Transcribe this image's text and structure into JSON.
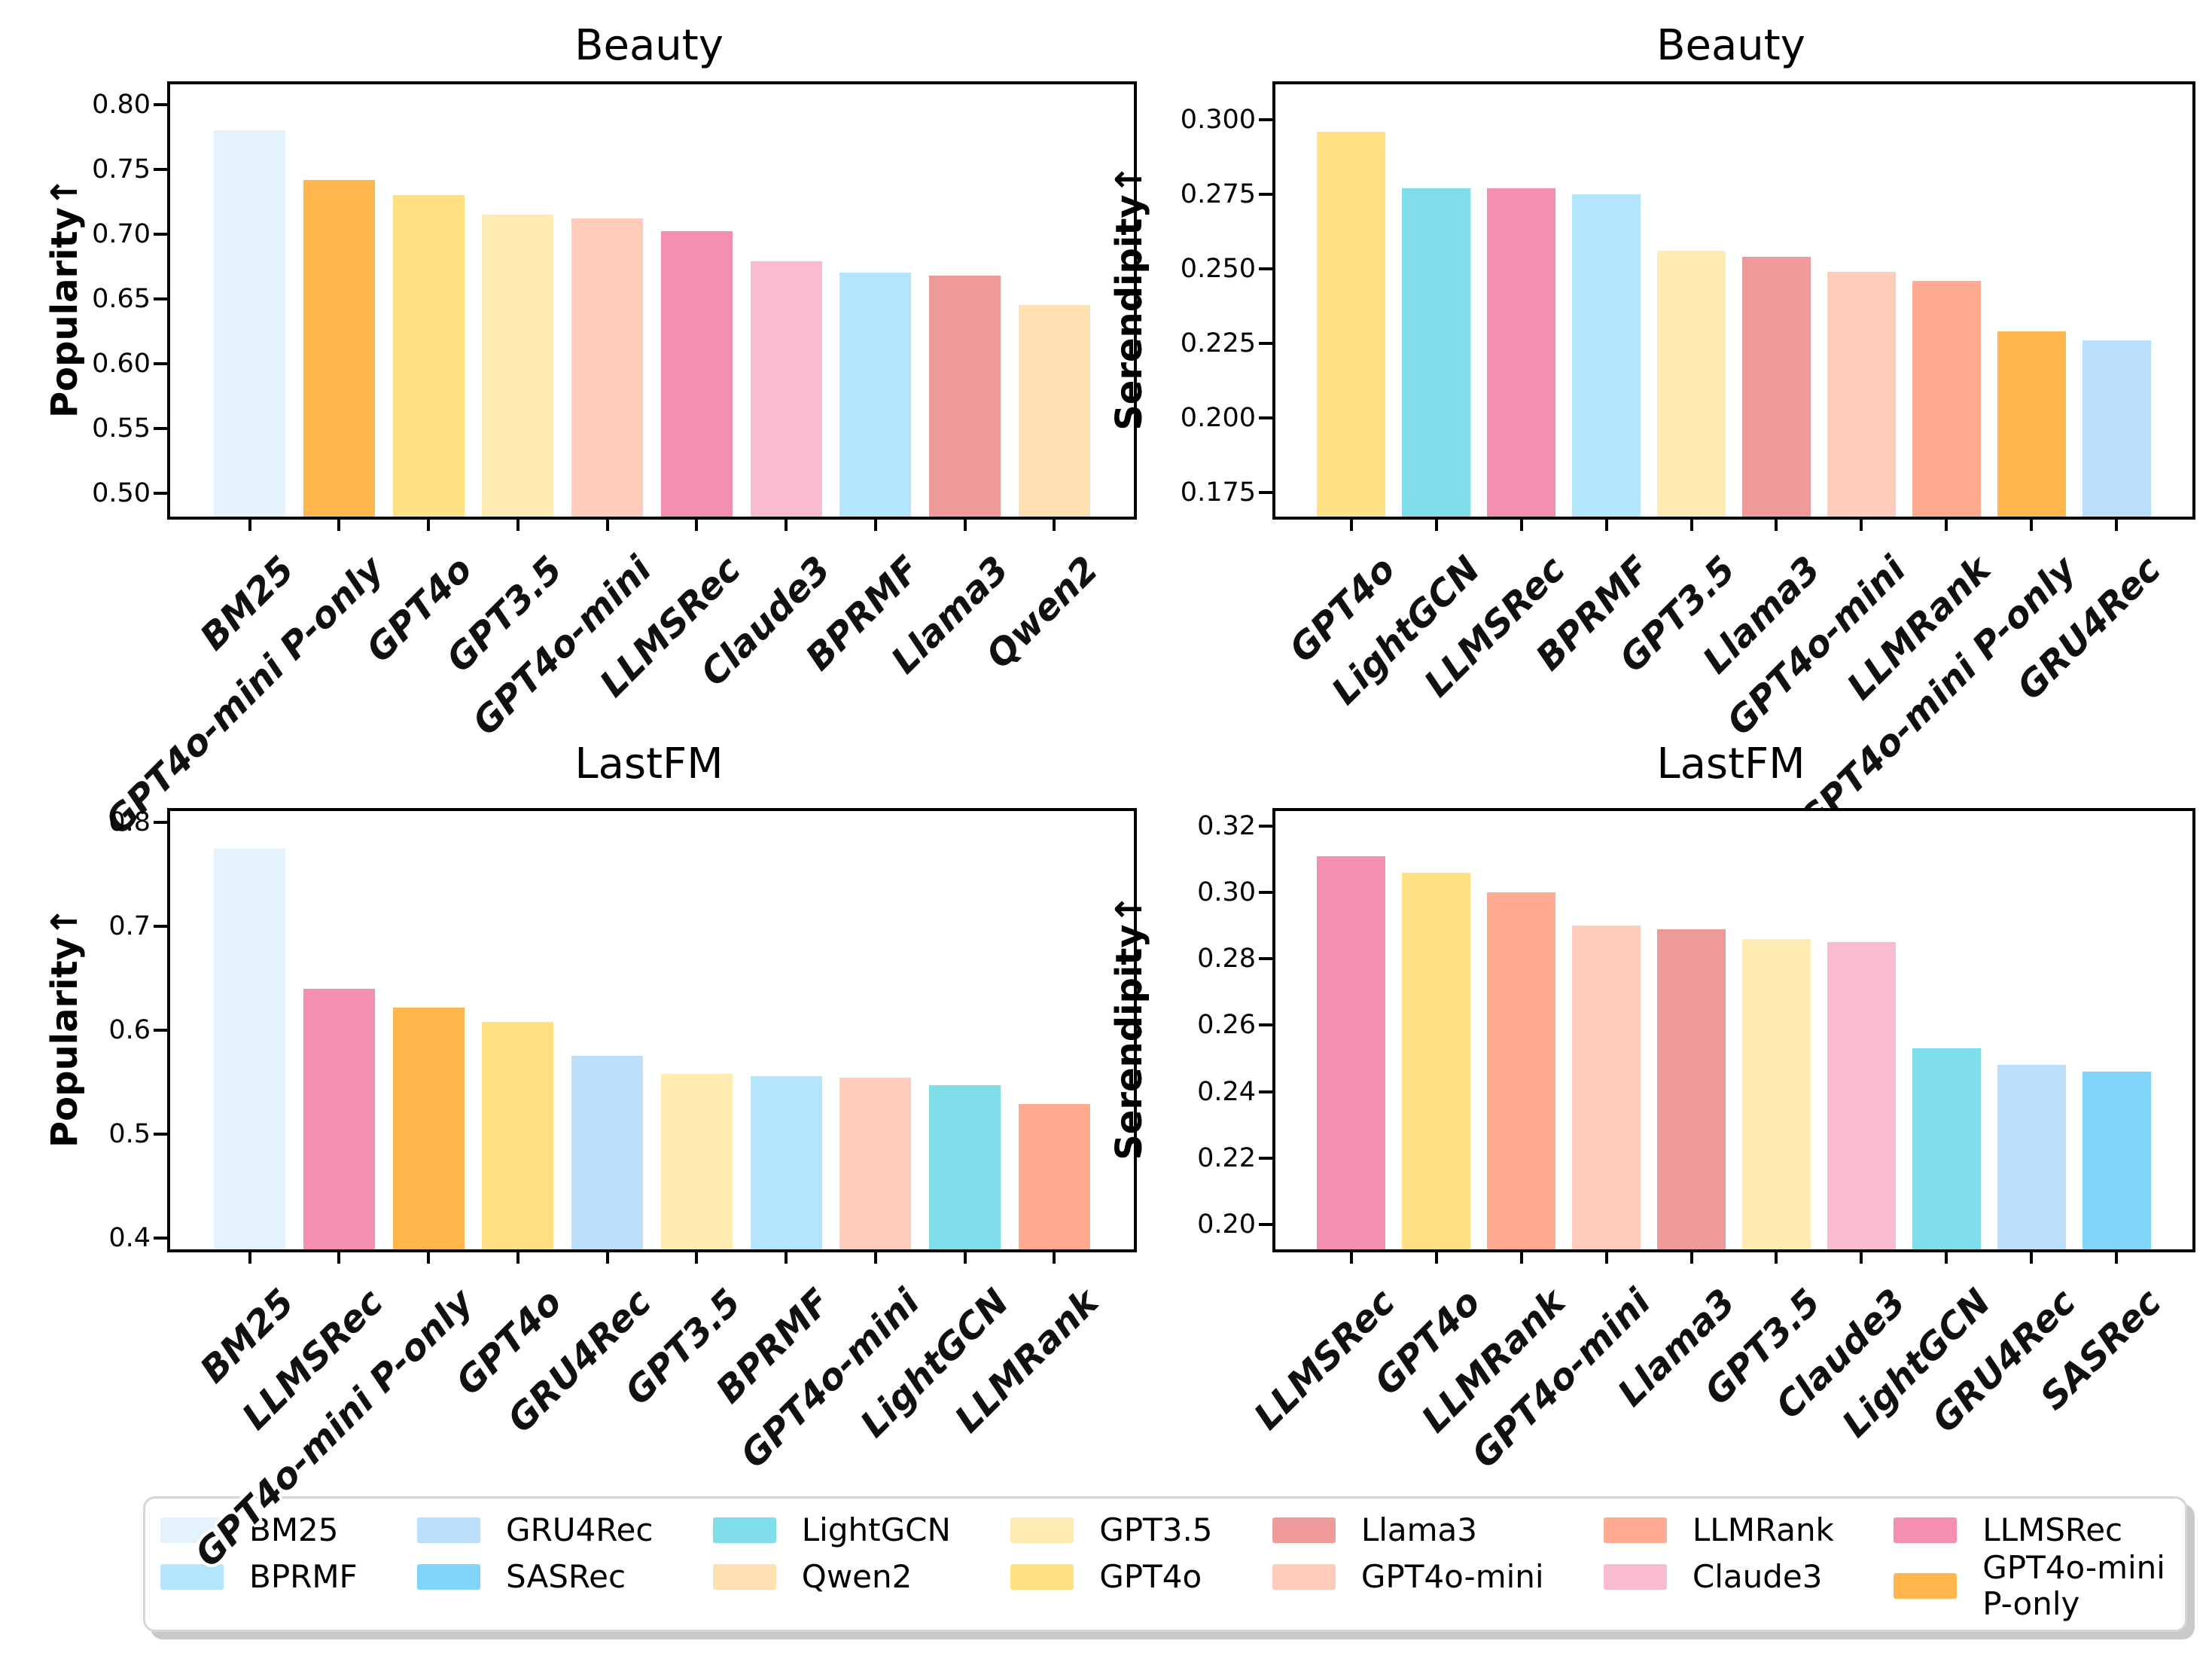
{
  "figure": {
    "background": "#ffffff"
  },
  "colors": {
    "BM25": "#E3F2FD",
    "BPRMF": "#B3E5FC",
    "GRU4Rec": "#BBDEFB",
    "SASRec": "#81D4FA",
    "LightGCN": "#80DEEA",
    "Qwen2": "#FFE0B2",
    "GPT3.5": "#FFECB3",
    "GPT4o": "#FFE082",
    "Llama3": "#EF9A9A",
    "GPT4o-mini": "#FFCCBC",
    "LLMRank": "#FFAB91",
    "Claude3": "#F8BBD0",
    "LLMSRec": "#F48FB1",
    "GPT4o-mini P-only": "#FFB74D"
  },
  "chart_data": [
    {
      "type": "bar",
      "title": "Beauty",
      "ylabel": "Popularity↑",
      "categories": [
        "BM25",
        "GPT4o-mini P-only",
        "GPT4o",
        "GPT3.5",
        "GPT4o-mini",
        "LLMSRec",
        "Claude3",
        "BPRMF",
        "Llama3",
        "Qwen2"
      ],
      "values": [
        0.78,
        0.742,
        0.73,
        0.715,
        0.712,
        0.702,
        0.679,
        0.67,
        0.668,
        0.645
      ],
      "ylim": [
        0.482,
        0.8155
      ],
      "ytick_values": [
        0.5,
        0.55,
        0.6,
        0.65,
        0.7,
        0.75,
        0.8
      ],
      "ytick_labels": [
        "0.50",
        "0.55",
        "0.60",
        "0.65",
        "0.70",
        "0.75",
        "0.80"
      ],
      "grid": false,
      "legend_position": "none"
    },
    {
      "type": "bar",
      "title": "Beauty",
      "ylabel": "Serendipity↑",
      "categories": [
        "GPT4o",
        "LightGCN",
        "LLMSRec",
        "BPRMF",
        "GPT3.5",
        "Llama3",
        "GPT4o-mini",
        "LLMRank",
        "GPT4o-mini P-only",
        "GRU4Rec"
      ],
      "values": [
        0.296,
        0.277,
        0.277,
        0.275,
        0.256,
        0.254,
        0.249,
        0.246,
        0.229,
        0.226
      ],
      "ylim": [
        0.1668,
        0.312
      ],
      "ytick_values": [
        0.175,
        0.2,
        0.225,
        0.25,
        0.275,
        0.3
      ],
      "ytick_labels": [
        "0.175",
        "0.200",
        "0.225",
        "0.250",
        "0.275",
        "0.300"
      ],
      "grid": false,
      "legend_position": "none"
    },
    {
      "type": "bar",
      "title": "LastFM",
      "ylabel": "Popularity↑",
      "categories": [
        "BM25",
        "LLMSRec",
        "GPT4o-mini P-only",
        "GPT4o",
        "GRU4Rec",
        "GPT3.5",
        "BPRMF",
        "GPT4o-mini",
        "LightGCN",
        "LLMRank"
      ],
      "values": [
        0.775,
        0.64,
        0.622,
        0.608,
        0.575,
        0.558,
        0.556,
        0.554,
        0.547,
        0.529
      ],
      "ylim": [
        0.389,
        0.811
      ],
      "ytick_values": [
        0.4,
        0.5,
        0.6,
        0.7,
        0.8
      ],
      "ytick_labels": [
        "0.4",
        "0.5",
        "0.6",
        "0.7",
        "0.8"
      ],
      "grid": false,
      "legend_position": "none"
    },
    {
      "type": "bar",
      "title": "LastFM",
      "ylabel": "Serendipity↑",
      "categories": [
        "LLMSRec",
        "GPT4o",
        "LLMRank",
        "GPT4o-mini",
        "Llama3",
        "GPT3.5",
        "Claude3",
        "LightGCN",
        "GRU4Rec",
        "SASRec"
      ],
      "values": [
        0.311,
        0.306,
        0.3,
        0.29,
        0.289,
        0.286,
        0.285,
        0.253,
        0.248,
        0.246
      ],
      "ylim": [
        0.1925,
        0.3245
      ],
      "ytick_values": [
        0.2,
        0.22,
        0.24,
        0.26,
        0.28,
        0.3,
        0.32
      ],
      "ytick_labels": [
        "0.20",
        "0.22",
        "0.24",
        "0.26",
        "0.28",
        "0.30",
        "0.32"
      ],
      "grid": false,
      "legend_position": "bottom"
    }
  ],
  "legend": {
    "entries": [
      {
        "model": "BM25",
        "label": "BM25"
      },
      {
        "model": "BPRMF",
        "label": "BPRMF"
      },
      {
        "model": "GRU4Rec",
        "label": "GRU4Rec"
      },
      {
        "model": "SASRec",
        "label": "SASRec"
      },
      {
        "model": "LightGCN",
        "label": "LightGCN"
      },
      {
        "model": "Qwen2",
        "label": "Qwen2"
      },
      {
        "model": "GPT3.5",
        "label": "GPT3.5"
      },
      {
        "model": "GPT4o",
        "label": "GPT4o"
      },
      {
        "model": "Llama3",
        "label": "Llama3"
      },
      {
        "model": "GPT4o-mini",
        "label": "GPT4o-mini"
      },
      {
        "model": "LLMRank",
        "label": "LLMRank"
      },
      {
        "model": "Claude3",
        "label": "Claude3"
      },
      {
        "model": "LLMSRec",
        "label": "LLMSRec"
      },
      {
        "model": "GPT4o-mini P-only",
        "label": "GPT4o-mini\nP-only"
      }
    ]
  }
}
